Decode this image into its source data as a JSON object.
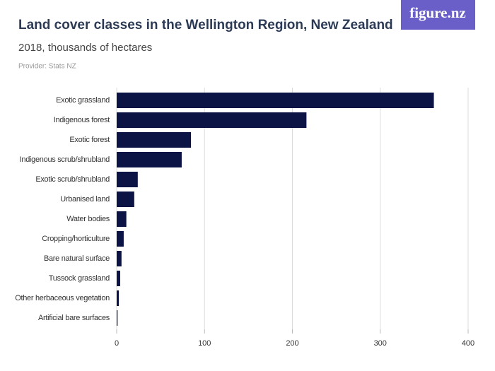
{
  "logo": "figure.nz",
  "chart_data": {
    "type": "hbar",
    "title": "Land cover classes in the Wellington Region, New Zealand",
    "subtitle": "2018, thousands of hectares",
    "provider": "Provider: Stats NZ",
    "categories": [
      "Exotic grassland",
      "Indigenous forest",
      "Exotic forest",
      "Indigenous scrub/shrubland",
      "Exotic scrub/shrubland",
      "Urbanised land",
      "Water bodies",
      "Cropping/horticulture",
      "Bare natural surface",
      "Tussock grassland",
      "Other herbaceous vegetation",
      "Artificial bare surfaces"
    ],
    "values": [
      361,
      216,
      84.5,
      74,
      24,
      20,
      11,
      8,
      5.5,
      4,
      2.5,
      1
    ],
    "color": "#0c1445",
    "xlim": [
      0,
      400
    ],
    "xticks": [
      0,
      100,
      200,
      300,
      400
    ],
    "grid": true
  }
}
